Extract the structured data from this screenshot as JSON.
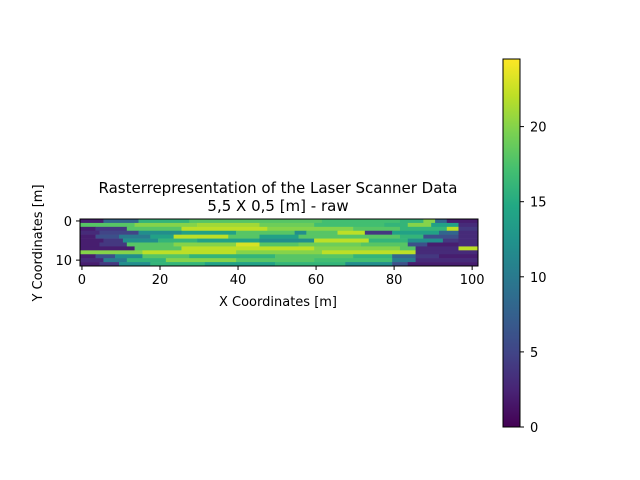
{
  "chart_data": {
    "type": "heatmap",
    "title_line1": "Rasterrepresentation of the Laser Scanner Data",
    "title_line2": "5,5 X 0,5 [m] - raw",
    "xlabel": "X Coordinates [m]",
    "ylabel": "Y Coordinates [m]",
    "xlim": [
      -0.5,
      101.5
    ],
    "ylim": [
      11.5,
      -0.5
    ],
    "xticks": [
      0,
      20,
      40,
      60,
      80,
      100
    ],
    "yticks": [
      0,
      10
    ],
    "colorbar": {
      "min": 0,
      "max": 24.5,
      "ticks": [
        0,
        5,
        10,
        15,
        20
      ],
      "colormap": "viridis"
    },
    "grid": false,
    "rows": [
      [
        [
          0,
          2
        ],
        [
          6,
          8
        ],
        [
          15,
          16
        ],
        [
          28,
          18
        ],
        [
          62,
          17
        ],
        [
          82,
          16
        ],
        [
          88,
          20
        ],
        [
          91,
          8
        ],
        [
          94,
          2
        ]
      ],
      [
        [
          0,
          18
        ],
        [
          14,
          20
        ],
        [
          30,
          21
        ],
        [
          46,
          19
        ],
        [
          60,
          17
        ],
        [
          78,
          16
        ],
        [
          84,
          20
        ],
        [
          90,
          14
        ],
        [
          97,
          3
        ]
      ],
      [
        [
          0,
          2
        ],
        [
          4,
          4
        ],
        [
          12,
          18
        ],
        [
          26,
          22
        ],
        [
          48,
          20
        ],
        [
          70,
          18
        ],
        [
          82,
          16
        ],
        [
          94,
          22
        ],
        [
          97,
          4
        ]
      ],
      [
        [
          0,
          3
        ],
        [
          5,
          5
        ],
        [
          15,
          12
        ],
        [
          26,
          14
        ],
        [
          40,
          18
        ],
        [
          55,
          12
        ],
        [
          58,
          18
        ],
        [
          66,
          22
        ],
        [
          73,
          4
        ],
        [
          80,
          14
        ],
        [
          92,
          8
        ],
        [
          97,
          3
        ]
      ],
      [
        [
          0,
          2
        ],
        [
          4,
          6
        ],
        [
          10,
          10
        ],
        [
          18,
          14
        ],
        [
          24,
          22
        ],
        [
          38,
          18
        ],
        [
          46,
          14
        ],
        [
          56,
          18
        ],
        [
          82,
          16
        ],
        [
          88,
          6
        ],
        [
          97,
          3
        ]
      ],
      [
        [
          0,
          2
        ],
        [
          6,
          4
        ],
        [
          11,
          12
        ],
        [
          20,
          16
        ],
        [
          30,
          14
        ],
        [
          46,
          12
        ],
        [
          60,
          22
        ],
        [
          74,
          16
        ],
        [
          84,
          12
        ],
        [
          93,
          4
        ],
        [
          97,
          3
        ]
      ],
      [
        [
          0,
          2
        ],
        [
          5,
          4
        ],
        [
          12,
          18
        ],
        [
          24,
          20
        ],
        [
          40,
          23
        ],
        [
          46,
          18
        ],
        [
          56,
          19
        ],
        [
          72,
          18
        ],
        [
          84,
          6
        ],
        [
          89,
          2
        ],
        [
          97,
          3
        ]
      ],
      [
        [
          0,
          2
        ],
        [
          14,
          18
        ],
        [
          26,
          22
        ],
        [
          60,
          20
        ],
        [
          82,
          18
        ],
        [
          86,
          3
        ],
        [
          97,
          22
        ]
      ],
      [
        [
          0,
          20
        ],
        [
          16,
          22
        ],
        [
          40,
          20
        ],
        [
          62,
          22
        ],
        [
          86,
          3
        ]
      ],
      [
        [
          0,
          2
        ],
        [
          4,
          6
        ],
        [
          9,
          12
        ],
        [
          16,
          18
        ],
        [
          28,
          16
        ],
        [
          50,
          18
        ],
        [
          70,
          16
        ],
        [
          80,
          8
        ],
        [
          86,
          4
        ],
        [
          92,
          2
        ]
      ],
      [
        [
          0,
          3
        ],
        [
          6,
          10
        ],
        [
          12,
          16
        ],
        [
          22,
          20
        ],
        [
          40,
          18
        ],
        [
          60,
          17
        ],
        [
          80,
          10
        ],
        [
          86,
          3
        ]
      ],
      [
        [
          0,
          2
        ],
        [
          5,
          4
        ],
        [
          10,
          12
        ],
        [
          18,
          16
        ],
        [
          32,
          14
        ],
        [
          50,
          16
        ],
        [
          68,
          12
        ],
        [
          80,
          6
        ],
        [
          84,
          2
        ]
      ]
    ]
  }
}
